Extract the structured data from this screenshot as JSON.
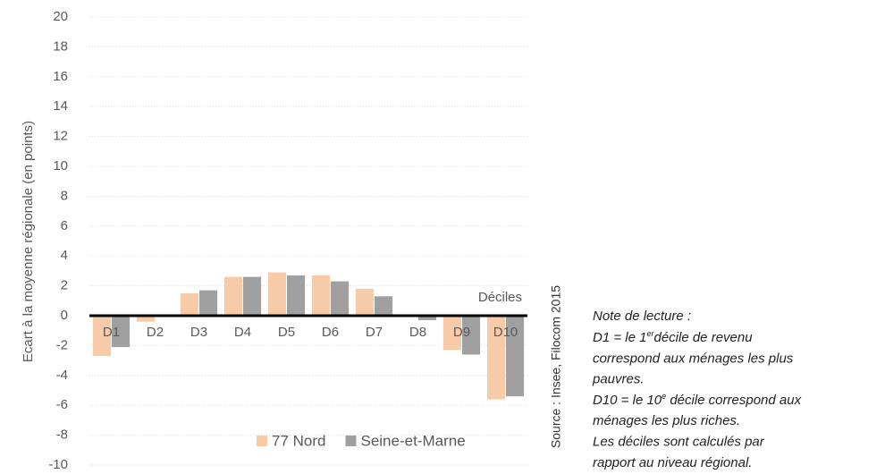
{
  "chart_data": {
    "type": "bar",
    "y_label": "Ecart à la moyenne régionale (en points)",
    "x_label": "Déciles",
    "source": "Source : Insee, Filocom 2015",
    "categories": [
      "D1",
      "D2",
      "D3",
      "D4",
      "D5",
      "D6",
      "D7",
      "D8",
      "D9",
      "D10"
    ],
    "series": [
      {
        "name": "77 Nord",
        "color": "#f8cba8",
        "values": [
          -2.7,
          -0.4,
          1.5,
          2.6,
          2.9,
          2.7,
          1.8,
          0,
          -2.3,
          -5.6
        ]
      },
      {
        "name": "Seine-et-Marne",
        "color": "#a0a0a0",
        "values": [
          -2.1,
          0,
          1.7,
          2.6,
          2.7,
          2.3,
          1.3,
          -0.3,
          -2.6,
          -5.4
        ]
      }
    ],
    "ylim": [
      -10,
      20
    ],
    "yticks": [
      -10,
      -8,
      -6,
      -4,
      -2,
      0,
      2,
      4,
      6,
      8,
      10,
      12,
      14,
      16,
      18,
      20
    ],
    "grid": true,
    "legend": "bottom"
  },
  "note": {
    "title": "Note de lecture :",
    "lines": [
      {
        "text": "D1 = le 1",
        "sup": "er",
        "after": "décile de revenu"
      },
      {
        "text": "correspond aux ménages les plus"
      },
      {
        "text": "pauvres."
      },
      {
        "text": "D10 = le 10",
        "sup": "e",
        "after": " décile correspond aux"
      },
      {
        "text": "ménages les plus riches."
      },
      {
        "text": "Les déciles sont calculés par"
      },
      {
        "text": "rapport au niveau régional."
      }
    ]
  }
}
